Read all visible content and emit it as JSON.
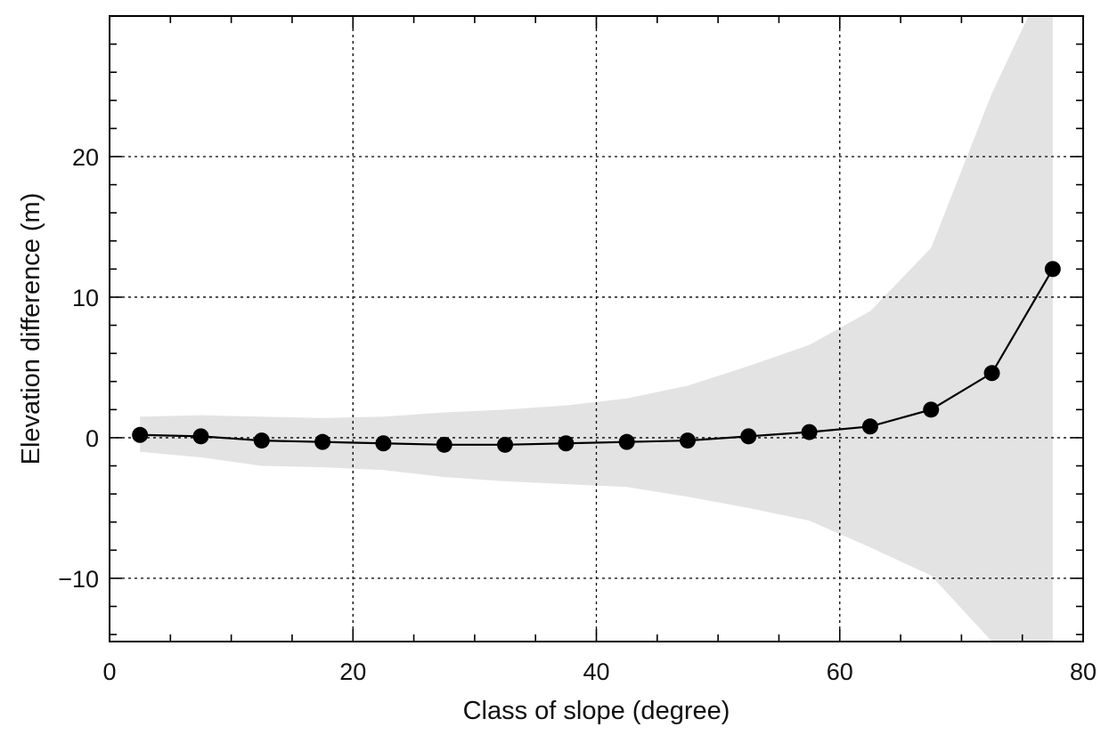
{
  "chart_data": {
    "type": "line",
    "xlabel": "Class of slope (degree)",
    "ylabel": "Elevation difference (m)",
    "xlim": [
      0,
      80
    ],
    "ylim": [
      -14.5,
      30
    ],
    "x_ticks": [
      0,
      20,
      40,
      60,
      80
    ],
    "x_tick_labels": [
      "0",
      "20",
      "40",
      "60",
      "80"
    ],
    "y_ticks": [
      -10,
      0,
      10,
      20
    ],
    "y_tick_labels": [
      "−10",
      "0",
      "10",
      "20"
    ],
    "grid": true,
    "x": [
      2.5,
      7.5,
      12.5,
      17.5,
      22.5,
      27.5,
      32.5,
      37.5,
      42.5,
      47.5,
      52.5,
      57.5,
      62.5,
      67.5,
      72.5,
      77.5
    ],
    "series": [
      {
        "values": [
          0.2,
          0.1,
          -0.2,
          -0.3,
          -0.4,
          -0.5,
          -0.5,
          -0.4,
          -0.3,
          -0.2,
          0.1,
          0.4,
          0.8,
          2.0,
          4.6,
          12.0
        ]
      }
    ],
    "band": {
      "x": [
        2.5,
        7.5,
        12.5,
        17.5,
        22.5,
        27.5,
        32.5,
        37.5,
        42.5,
        47.5,
        52.5,
        57.5,
        62.5,
        67.5,
        72.5,
        75.5,
        77.5
      ],
      "upper": [
        1.5,
        1.6,
        1.5,
        1.4,
        1.5,
        1.8,
        2.0,
        2.3,
        2.8,
        3.7,
        5.1,
        6.6,
        9.0,
        13.5,
        24.5,
        30.0,
        30.0
      ],
      "lower": [
        -1.0,
        -1.4,
        -2.0,
        -2.1,
        -2.3,
        -2.8,
        -3.1,
        -3.3,
        -3.5,
        -4.2,
        -5.0,
        -5.9,
        -7.8,
        -9.8,
        -14.5,
        -14.5,
        -14.5
      ]
    },
    "colors": {
      "band": "#e3e3e3",
      "line": "#000000",
      "grid": "#000000"
    }
  }
}
